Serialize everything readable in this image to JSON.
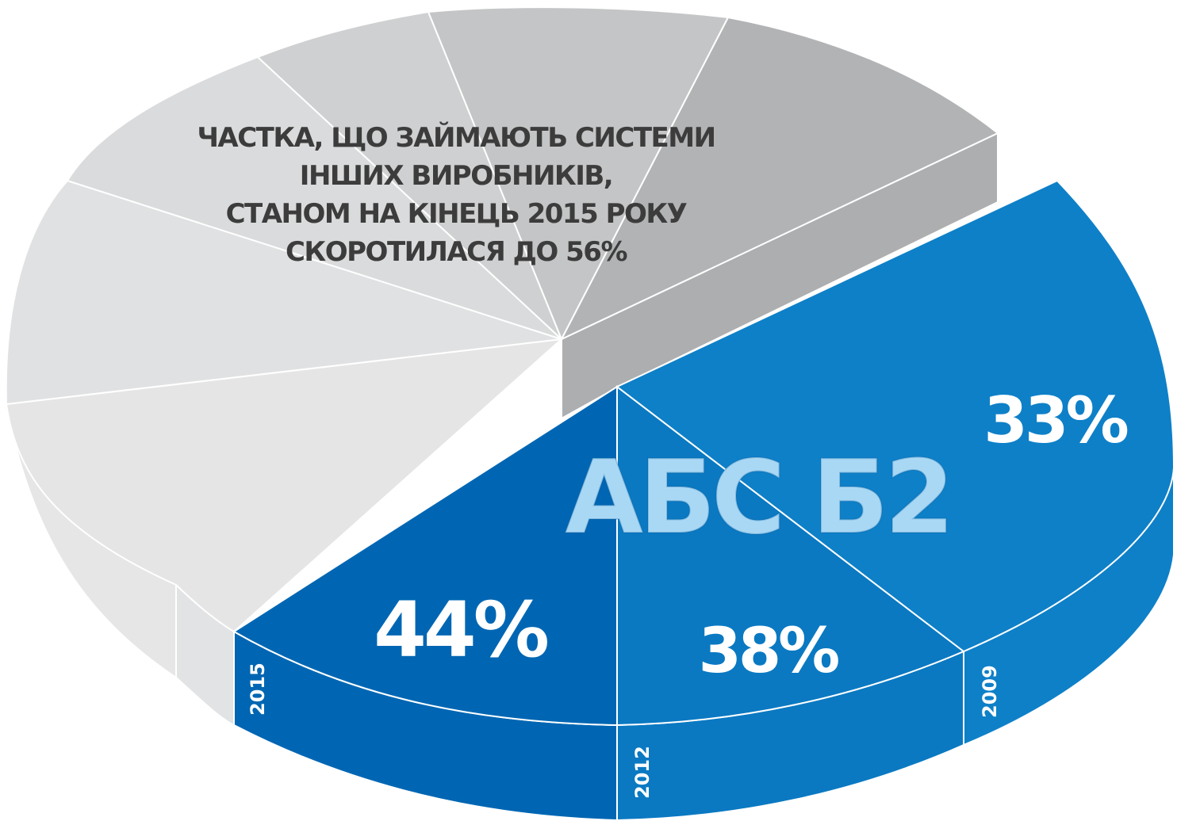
{
  "caption": {
    "lines": [
      "ЧАСТКА, ЩО ЗАЙМАЮТЬ СИСТЕМИ",
      "ІНШИХ ВИРОБНИКІВ,",
      "СТАНОМ НА КІНЕЦЬ 2015 РОКУ",
      "СКОРОТИЛАСЯ ДО 56%"
    ]
  },
  "chart_data": {
    "type": "pie",
    "title": "АБС Б2",
    "highlight_colors": {
      "2015": "#0066b3",
      "2012": "#0a79c2",
      "2009": "#0e80c8",
      "title": "#a9d8f5"
    },
    "others_colors": [
      "#e5e5e6",
      "#e0e1e2",
      "#dadbdc",
      "#cfd0d1",
      "#c4c5c6",
      "#b2b3b5"
    ],
    "series": [
      {
        "label": "2015",
        "value": 44,
        "value_label": "44%"
      },
      {
        "label": "2012",
        "value": 38,
        "value_label": "38%"
      },
      {
        "label": "2009",
        "value": 33,
        "value_label": "33%"
      }
    ],
    "others": {
      "value": 56
    }
  }
}
